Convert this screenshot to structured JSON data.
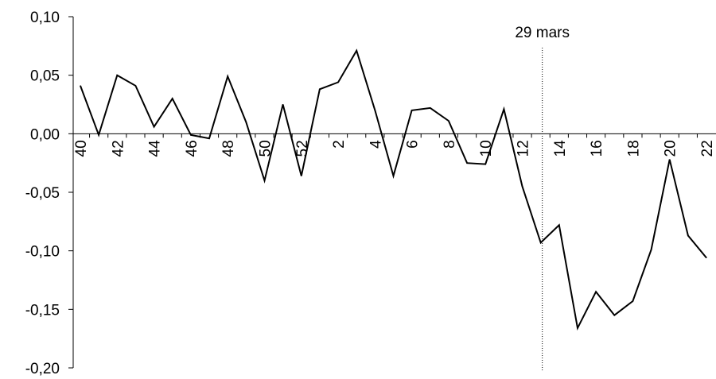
{
  "chart_data": {
    "type": "line",
    "title": "",
    "xlabel": "",
    "ylabel": "",
    "ylim": [
      -0.2,
      0.1
    ],
    "ytick_labels": [
      "0,10",
      "0,05",
      "0,00",
      "-0,05",
      "-0,10",
      "-0,15",
      "-0,20"
    ],
    "ytick_values": [
      0.1,
      0.05,
      0.0,
      -0.05,
      -0.1,
      -0.15,
      -0.2
    ],
    "x": [
      "40",
      "41",
      "42",
      "43",
      "44",
      "45",
      "46",
      "47",
      "48",
      "49",
      "50",
      "51",
      "52",
      "1",
      "2",
      "3",
      "4",
      "5",
      "6",
      "7",
      "8",
      "9",
      "10",
      "11",
      "12",
      "13",
      "14",
      "15",
      "16",
      "17",
      "18",
      "19",
      "20",
      "21",
      "22"
    ],
    "xtick_labels": [
      "40",
      "42",
      "44",
      "46",
      "48",
      "50",
      "52",
      "2",
      "4",
      "6",
      "8",
      "10",
      "12",
      "14",
      "16",
      "18",
      "20",
      "22"
    ],
    "series": [
      {
        "values": [
          0.041,
          -0.001,
          0.05,
          0.041,
          0.006,
          0.03,
          -0.001,
          -0.004,
          0.049,
          0.01,
          -0.04,
          0.025,
          -0.036,
          0.038,
          0.044,
          0.071,
          0.02,
          -0.036,
          0.02,
          0.022,
          0.011,
          -0.025,
          -0.026,
          0.021,
          -0.045,
          -0.093,
          -0.078,
          -0.166,
          -0.135,
          -0.155,
          -0.143,
          -0.099,
          -0.022,
          -0.087,
          -0.106
        ]
      }
    ],
    "grid": false,
    "legend": "none",
    "annotation": {
      "label": "29 mars",
      "x_week": "13"
    },
    "colors": {
      "line": "#000000",
      "axis": "#000000"
    }
  }
}
